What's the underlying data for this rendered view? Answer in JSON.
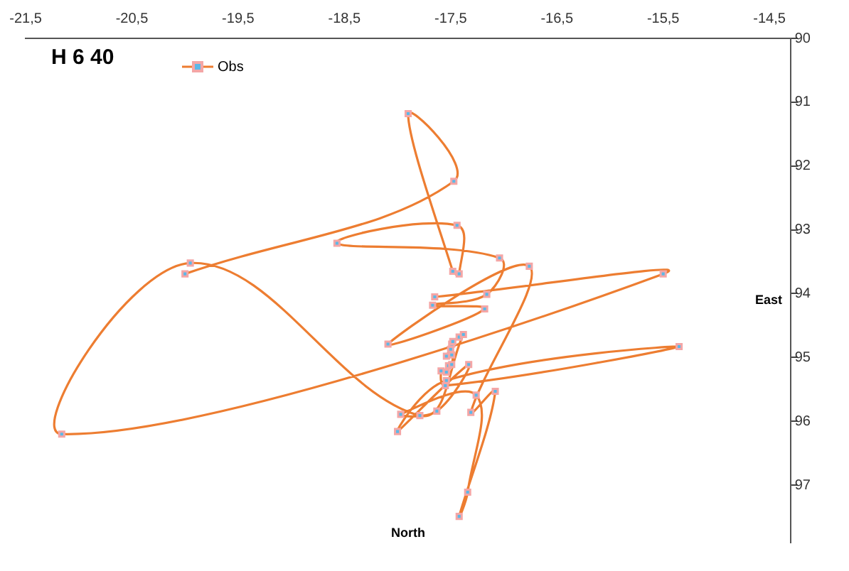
{
  "chart_data": {
    "type": "line",
    "title": "H 6 40",
    "xlabel": "North",
    "ylabel": "East",
    "legend": "top left",
    "marker": "square",
    "grid": false,
    "xlim": [
      -21.5,
      -14.3
    ],
    "ylim": [
      97.9,
      90
    ],
    "xticks": [
      {
        "value": -21.5,
        "label": "-21,5"
      },
      {
        "value": -20.5,
        "label": "-20,5"
      },
      {
        "value": -19.5,
        "label": "-19,5"
      },
      {
        "value": -18.5,
        "label": "-18,5"
      },
      {
        "value": -17.5,
        "label": "-17,5"
      },
      {
        "value": -16.5,
        "label": "-16,5"
      },
      {
        "value": -15.5,
        "label": "-15,5"
      },
      {
        "value": -14.5,
        "label": "-14,5"
      }
    ],
    "yticks": [
      90,
      91,
      92,
      93,
      94,
      95,
      96,
      97
    ],
    "series": [
      {
        "name": "Obs",
        "color": "#ed7d31",
        "x": [
          -20.0,
          -17.47,
          -17.9,
          -17.48,
          -17.42,
          -17.44,
          -18.57,
          -17.04,
          -17.16,
          -17.67,
          -17.18,
          -18.09,
          -16.76,
          -17.31,
          -17.08,
          -17.42,
          -17.34,
          -17.26,
          -17.97,
          -17.63,
          -17.33,
          -18.0,
          -17.54,
          -15.35,
          -17.55,
          -17.59,
          -17.54,
          -17.52,
          -17.49,
          -17.49,
          -17.54,
          -17.5,
          -17.49,
          -17.48,
          -17.42,
          -17.38,
          -17.79,
          -19.95,
          -21.16,
          -15.5,
          -17.65
        ],
        "values": [
          93.69,
          92.24,
          91.18,
          93.65,
          93.69,
          92.93,
          93.21,
          93.44,
          94.01,
          94.18,
          94.24,
          94.79,
          93.57,
          95.86,
          95.53,
          97.49,
          97.11,
          95.59,
          95.89,
          95.84,
          95.11,
          96.16,
          95.36,
          94.83,
          95.44,
          95.21,
          95.23,
          95.13,
          95.11,
          94.96,
          94.98,
          94.87,
          94.79,
          94.75,
          94.68,
          94.64,
          95.91,
          93.52,
          96.2,
          93.69,
          94.05
        ]
      }
    ]
  }
}
